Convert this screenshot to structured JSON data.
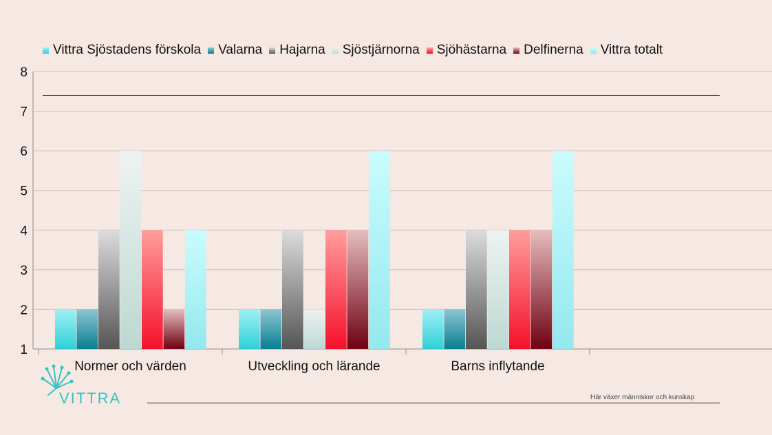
{
  "chart_data": {
    "type": "bar",
    "title": "",
    "xlabel": "",
    "ylabel": "",
    "ylim": [
      1,
      8
    ],
    "yticks": [
      1,
      2,
      3,
      4,
      5,
      6,
      7,
      8
    ],
    "grid": true,
    "legend_position": "top",
    "categories": [
      "Normer och värden",
      "Utveckling och lärande",
      "Barns inflytande"
    ],
    "series": [
      {
        "name": "Vittra Sjöstadens förskola",
        "color_top": "#9ff0f4",
        "color_bottom": "#2ed0d8",
        "values": [
          2,
          2,
          2
        ]
      },
      {
        "name": "Valarna",
        "color_top": "#8cc5d0",
        "color_bottom": "#077f92",
        "values": [
          2,
          2,
          2
        ]
      },
      {
        "name": "Hajarna",
        "color_top": "#dcdcdc",
        "color_bottom": "#555555",
        "values": [
          4,
          4,
          4
        ]
      },
      {
        "name": "Sjöstjärnorna",
        "color_top": "#eef3f1",
        "color_bottom": "#bcd8d4",
        "values": [
          6,
          2,
          4
        ]
      },
      {
        "name": "Sjöhästarna",
        "color_top": "#ff9d9d",
        "color_bottom": "#f5102a",
        "values": [
          4,
          4,
          4
        ]
      },
      {
        "name": "Delfinerna",
        "color_top": "#e6bdbd",
        "color_bottom": "#6e0012",
        "values": [
          2,
          4,
          4
        ]
      },
      {
        "name": "Vittra totalt",
        "color_top": "#c9fcfe",
        "color_bottom": "#94e8ee",
        "values": [
          4,
          6,
          6
        ]
      }
    ]
  },
  "footer": {
    "tagline": "Här växer människor och kunskap",
    "logo_text": "VITTRA",
    "logo_color": "#34c3c3"
  }
}
